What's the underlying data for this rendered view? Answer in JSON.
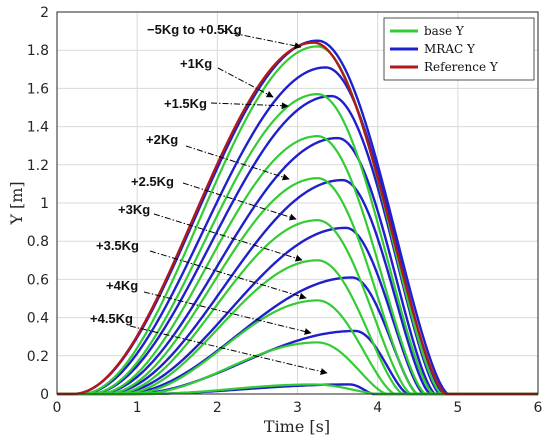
{
  "chart_data": {
    "type": "line",
    "xlabel": "Time [s]",
    "ylabel": "Y [m]",
    "xlim": [
      0,
      6
    ],
    "ylim": [
      0,
      2
    ],
    "xticks": [
      "0",
      "1",
      "2",
      "3",
      "4",
      "5",
      "6"
    ],
    "yticks": [
      "0",
      "0.2",
      "0.4",
      "0.6",
      "0.8",
      "1",
      "1.2",
      "1.4",
      "1.6",
      "1.8",
      "2"
    ],
    "grid": true,
    "legend": {
      "placement": "top-right",
      "entries": [
        {
          "name": "base Y",
          "color": "#33cc33"
        },
        {
          "name": "MRAC Y",
          "color": "#1f1fcc"
        },
        {
          "name": "Reference Y",
          "color": "#b01a1a"
        }
      ]
    },
    "annotations": [
      "−5Kg to +0.5Kg",
      "+1Kg",
      "+1.5Kg",
      "+2Kg",
      "+2.5Kg",
      "+3Kg",
      "+3.5Kg",
      "+4Kg",
      "+4.5Kg"
    ],
    "reference": {
      "t0": 0.2,
      "tf": 4.85,
      "peak": 1.84,
      "tpeak": 3.2
    },
    "base_curves": [
      {
        "payload": "-5Kg to +0.5Kg",
        "t0": 0.3,
        "tf": 4.8,
        "peak": 1.82,
        "tpeak": 3.25
      },
      {
        "payload": "+1Kg",
        "t0": 0.4,
        "tf": 4.7,
        "peak": 1.57,
        "tpeak": 3.25
      },
      {
        "payload": "+1.5Kg",
        "t0": 0.5,
        "tf": 4.6,
        "peak": 1.35,
        "tpeak": 3.25
      },
      {
        "payload": "+2Kg",
        "t0": 0.6,
        "tf": 4.5,
        "peak": 1.13,
        "tpeak": 3.25
      },
      {
        "payload": "+2.5Kg",
        "t0": 0.7,
        "tf": 4.42,
        "peak": 0.91,
        "tpeak": 3.25
      },
      {
        "payload": "+3Kg",
        "t0": 0.8,
        "tf": 4.32,
        "peak": 0.7,
        "tpeak": 3.25
      },
      {
        "payload": "+3.5Kg",
        "t0": 0.9,
        "tf": 4.22,
        "peak": 0.49,
        "tpeak": 3.25
      },
      {
        "payload": "+4Kg",
        "t0": 1.0,
        "tf": 4.12,
        "peak": 0.27,
        "tpeak": 3.25
      },
      {
        "payload": "+4.5Kg",
        "t0": 1.1,
        "tf": 4.02,
        "peak": 0.05,
        "tpeak": 3.2
      }
    ],
    "mrac_curves": [
      {
        "payload": "-5Kg to +0.5Kg",
        "t0": 0.2,
        "tf": 4.88,
        "peak": 1.85,
        "tpeak": 3.25
      },
      {
        "payload": "+1Kg",
        "t0": 0.3,
        "tf": 4.83,
        "peak": 1.71,
        "tpeak": 3.35
      },
      {
        "payload": "+1.5Kg",
        "t0": 0.4,
        "tf": 4.78,
        "peak": 1.56,
        "tpeak": 3.42
      },
      {
        "payload": "+2Kg",
        "t0": 0.5,
        "tf": 4.72,
        "peak": 1.34,
        "tpeak": 3.5
      },
      {
        "payload": "+2.5Kg",
        "t0": 0.6,
        "tf": 4.66,
        "peak": 1.12,
        "tpeak": 3.56
      },
      {
        "payload": "+3Kg",
        "t0": 0.7,
        "tf": 4.58,
        "peak": 0.87,
        "tpeak": 3.6
      },
      {
        "payload": "+3.5Kg",
        "t0": 0.8,
        "tf": 4.5,
        "peak": 0.61,
        "tpeak": 3.68
      },
      {
        "payload": "+4Kg",
        "t0": 0.9,
        "tf": 4.38,
        "peak": 0.33,
        "tpeak": 3.72
      },
      {
        "payload": "+4.5Kg",
        "t0": 1.0,
        "tf": 3.95,
        "peak": 0.05,
        "tpeak": 3.65
      }
    ]
  }
}
